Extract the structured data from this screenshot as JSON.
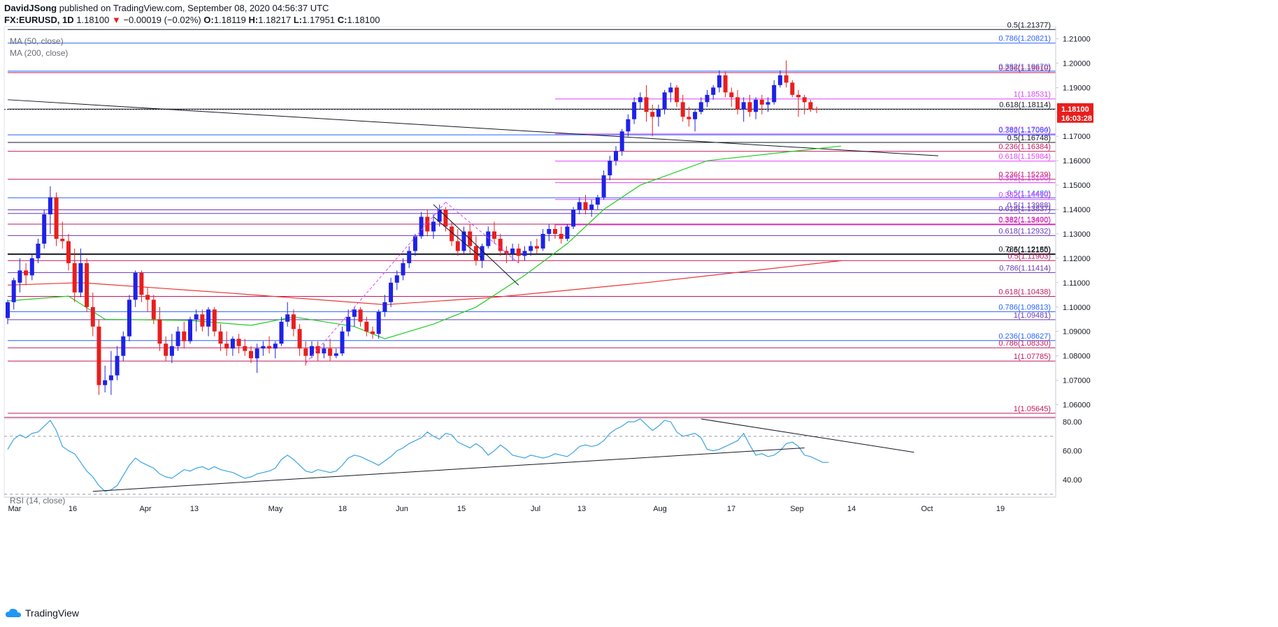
{
  "header": {
    "author": "DavidJSong",
    "published": "published on TradingView.com, September 08, 2020 04:56:37 UTC",
    "symbol": "FX:EURUSD, 1D",
    "last": "1.18100",
    "change": "−0.00019 (−0.02%)",
    "open_label": "O:",
    "open": "1.18119",
    "high_label": "H:",
    "high": "1.18217",
    "low_label": "L:",
    "low": "1.17951",
    "close_label": "C:",
    "close": "1.18100"
  },
  "legend": {
    "ma50": "MA (50, close)",
    "ma200": "MA (200, close)",
    "rsi": "RSI (14, close)"
  },
  "branding": {
    "name": "TradingView"
  },
  "price_badge": {
    "price": "1.18100",
    "countdown": "16:03:28"
  },
  "colors": {
    "up": "#1e22e6",
    "down": "#e91e1e",
    "ma50": "#22cc22",
    "ma200": "#ee3333",
    "rsi": "#3ba3e3",
    "fib_black": "#131722",
    "fib_blue": "#2962ff",
    "fib_red": "#c2185b",
    "fib_magenta": "#e040fb",
    "fib_purple": "#673ab7"
  },
  "chart_data": {
    "type": "candlestick",
    "price_axis": {
      "min": 1.055,
      "max": 1.215,
      "ticks": [
        "1.21000",
        "1.20000",
        "1.19000",
        "1.18000",
        "1.17000",
        "1.16000",
        "1.15000",
        "1.14000",
        "1.13000",
        "1.12000",
        "1.11000",
        "1.10000",
        "1.09000",
        "1.08000",
        "1.07000",
        "1.06000"
      ]
    },
    "rsi_axis": {
      "min": 28,
      "max": 82,
      "ticks": [
        "80.00",
        "60.00",
        "40.00"
      ],
      "overbought": 70,
      "oversold": 30
    },
    "time_axis": [
      "Mar",
      "16",
      "Apr",
      "13",
      "May",
      "18",
      "Jun",
      "15",
      "Jul",
      "13",
      "Aug",
      "17",
      "Sep",
      "14",
      "Oct",
      "19"
    ],
    "candles": [
      [
        1.0955,
        1.103,
        1.093,
        1.102
      ],
      [
        1.102,
        1.112,
        1.099,
        1.111
      ],
      [
        1.11,
        1.12,
        1.106,
        1.115
      ],
      [
        1.115,
        1.118,
        1.109,
        1.113
      ],
      [
        1.113,
        1.122,
        1.111,
        1.12
      ],
      [
        1.12,
        1.128,
        1.118,
        1.126
      ],
      [
        1.126,
        1.14,
        1.124,
        1.138
      ],
      [
        1.138,
        1.1495,
        1.13,
        1.145
      ],
      [
        1.145,
        1.147,
        1.125,
        1.128
      ],
      [
        1.128,
        1.135,
        1.124,
        1.127
      ],
      [
        1.127,
        1.13,
        1.115,
        1.118
      ],
      [
        1.118,
        1.124,
        1.102,
        1.106
      ],
      [
        1.106,
        1.124,
        1.104,
        1.118
      ],
      [
        1.118,
        1.12,
        1.098,
        1.1
      ],
      [
        1.1,
        1.106,
        1.088,
        1.092
      ],
      [
        1.092,
        1.095,
        1.064,
        1.068
      ],
      [
        1.068,
        1.076,
        1.065,
        1.07
      ],
      [
        1.07,
        1.082,
        1.064,
        1.072
      ],
      [
        1.072,
        1.084,
        1.07,
        1.08
      ],
      [
        1.08,
        1.09,
        1.078,
        1.088
      ],
      [
        1.088,
        1.105,
        1.086,
        1.103
      ],
      [
        1.103,
        1.115,
        1.1,
        1.114
      ],
      [
        1.114,
        1.115,
        1.102,
        1.105
      ],
      [
        1.105,
        1.108,
        1.098,
        1.103
      ],
      [
        1.103,
        1.105,
        1.093,
        1.095
      ],
      [
        1.095,
        1.1,
        1.082,
        1.085
      ],
      [
        1.085,
        1.088,
        1.078,
        1.08
      ],
      [
        1.08,
        1.089,
        1.077,
        1.084
      ],
      [
        1.084,
        1.092,
        1.082,
        1.09
      ],
      [
        1.09,
        1.094,
        1.083,
        1.086
      ],
      [
        1.086,
        1.096,
        1.085,
        1.095
      ],
      [
        1.095,
        1.099,
        1.09,
        1.097
      ],
      [
        1.097,
        1.099,
        1.09,
        1.092
      ],
      [
        1.092,
        1.1,
        1.088,
        1.099
      ],
      [
        1.099,
        1.1,
        1.088,
        1.09
      ],
      [
        1.09,
        1.093,
        1.082,
        1.085
      ],
      [
        1.085,
        1.09,
        1.08,
        1.083
      ],
      [
        1.083,
        1.088,
        1.08,
        1.087
      ],
      [
        1.087,
        1.089,
        1.081,
        1.084
      ],
      [
        1.084,
        1.087,
        1.08,
        1.082
      ],
      [
        1.082,
        1.084,
        1.077,
        1.079
      ],
      [
        1.079,
        1.085,
        1.073,
        1.083
      ],
      [
        1.083,
        1.086,
        1.08,
        1.084
      ],
      [
        1.084,
        1.088,
        1.081,
        1.083
      ],
      [
        1.083,
        1.086,
        1.079,
        1.085
      ],
      [
        1.085,
        1.096,
        1.084,
        1.094
      ],
      [
        1.094,
        1.102,
        1.092,
        1.097
      ],
      [
        1.097,
        1.099,
        1.088,
        1.091
      ],
      [
        1.091,
        1.093,
        1.08,
        1.083
      ],
      [
        1.083,
        1.086,
        1.076,
        1.08
      ],
      [
        1.08,
        1.086,
        1.079,
        1.084
      ],
      [
        1.084,
        1.086,
        1.078,
        1.081
      ],
      [
        1.081,
        1.085,
        1.079,
        1.083
      ],
      [
        1.083,
        1.087,
        1.078,
        1.08
      ],
      [
        1.08,
        1.083,
        1.079,
        1.081
      ],
      [
        1.081,
        1.092,
        1.08,
        1.09
      ],
      [
        1.09,
        1.099,
        1.088,
        1.096
      ],
      [
        1.096,
        1.1,
        1.092,
        1.099
      ],
      [
        1.099,
        1.1,
        1.092,
        1.094
      ],
      [
        1.094,
        1.096,
        1.088,
        1.09
      ],
      [
        1.09,
        1.092,
        1.087,
        1.089
      ],
      [
        1.089,
        1.099,
        1.087,
        1.098
      ],
      [
        1.098,
        1.105,
        1.096,
        1.102
      ],
      [
        1.102,
        1.112,
        1.1,
        1.11
      ],
      [
        1.11,
        1.115,
        1.107,
        1.113
      ],
      [
        1.113,
        1.12,
        1.111,
        1.118
      ],
      [
        1.118,
        1.125,
        1.116,
        1.123
      ],
      [
        1.123,
        1.13,
        1.121,
        1.129
      ],
      [
        1.129,
        1.139,
        1.128,
        1.137
      ],
      [
        1.137,
        1.14,
        1.129,
        1.131
      ],
      [
        1.131,
        1.138,
        1.128,
        1.135
      ],
      [
        1.135,
        1.142,
        1.133,
        1.14
      ],
      [
        1.14,
        1.141,
        1.131,
        1.133
      ],
      [
        1.133,
        1.135,
        1.125,
        1.127
      ],
      [
        1.127,
        1.132,
        1.121,
        1.123
      ],
      [
        1.123,
        1.133,
        1.122,
        1.131
      ],
      [
        1.131,
        1.134,
        1.122,
        1.125
      ],
      [
        1.125,
        1.129,
        1.117,
        1.119
      ],
      [
        1.119,
        1.126,
        1.116,
        1.125
      ],
      [
        1.125,
        1.133,
        1.124,
        1.131
      ],
      [
        1.131,
        1.135,
        1.126,
        1.128
      ],
      [
        1.128,
        1.13,
        1.121,
        1.123
      ],
      [
        1.123,
        1.125,
        1.118,
        1.122
      ],
      [
        1.122,
        1.126,
        1.119,
        1.124
      ],
      [
        1.124,
        1.126,
        1.118,
        1.121
      ],
      [
        1.121,
        1.125,
        1.119,
        1.123
      ],
      [
        1.123,
        1.127,
        1.121,
        1.125
      ],
      [
        1.125,
        1.128,
        1.122,
        1.124
      ],
      [
        1.124,
        1.132,
        1.123,
        1.13
      ],
      [
        1.13,
        1.134,
        1.127,
        1.132
      ],
      [
        1.132,
        1.134,
        1.128,
        1.13
      ],
      [
        1.13,
        1.133,
        1.126,
        1.128
      ],
      [
        1.128,
        1.134,
        1.127,
        1.133
      ],
      [
        1.133,
        1.141,
        1.132,
        1.14
      ],
      [
        1.14,
        1.145,
        1.138,
        1.143
      ],
      [
        1.143,
        1.146,
        1.138,
        1.14
      ],
      [
        1.14,
        1.144,
        1.137,
        1.142
      ],
      [
        1.142,
        1.146,
        1.14,
        1.145
      ],
      [
        1.145,
        1.156,
        1.144,
        1.154
      ],
      [
        1.154,
        1.162,
        1.152,
        1.16
      ],
      [
        1.16,
        1.166,
        1.158,
        1.164
      ],
      [
        1.164,
        1.173,
        1.162,
        1.172
      ],
      [
        1.172,
        1.179,
        1.17,
        1.177
      ],
      [
        1.177,
        1.186,
        1.175,
        1.184
      ],
      [
        1.184,
        1.188,
        1.181,
        1.186
      ],
      [
        1.186,
        1.191,
        1.176,
        1.18
      ],
      [
        1.18,
        1.183,
        1.17,
        1.178
      ],
      [
        1.178,
        1.183,
        1.174,
        1.181
      ],
      [
        1.181,
        1.189,
        1.179,
        1.188
      ],
      [
        1.188,
        1.192,
        1.184,
        1.19
      ],
      [
        1.19,
        1.191,
        1.182,
        1.184
      ],
      [
        1.184,
        1.187,
        1.176,
        1.178
      ],
      [
        1.178,
        1.182,
        1.174,
        1.177
      ],
      [
        1.177,
        1.181,
        1.172,
        1.18
      ],
      [
        1.18,
        1.186,
        1.179,
        1.184
      ],
      [
        1.184,
        1.189,
        1.182,
        1.187
      ],
      [
        1.187,
        1.191,
        1.185,
        1.19
      ],
      [
        1.19,
        1.197,
        1.188,
        1.195
      ],
      [
        1.195,
        1.1965,
        1.186,
        1.188
      ],
      [
        1.188,
        1.19,
        1.182,
        1.186
      ],
      [
        1.186,
        1.189,
        1.179,
        1.181
      ],
      [
        1.181,
        1.186,
        1.176,
        1.184
      ],
      [
        1.184,
        1.187,
        1.178,
        1.18
      ],
      [
        1.18,
        1.186,
        1.177,
        1.185
      ],
      [
        1.185,
        1.187,
        1.179,
        1.183
      ],
      [
        1.183,
        1.186,
        1.18,
        1.184
      ],
      [
        1.184,
        1.193,
        1.183,
        1.191
      ],
      [
        1.191,
        1.197,
        1.19,
        1.195
      ],
      [
        1.195,
        1.2011,
        1.19,
        1.192
      ],
      [
        1.192,
        1.193,
        1.186,
        1.187
      ],
      [
        1.187,
        1.189,
        1.178,
        1.186
      ],
      [
        1.186,
        1.187,
        1.179,
        1.184
      ],
      [
        1.184,
        1.185,
        1.18,
        1.181
      ],
      [
        1.1812,
        1.1822,
        1.1795,
        1.181
      ]
    ],
    "ma50": [
      [
        1.1025,
        0
      ],
      [
        1.1045,
        10
      ],
      [
        1.095,
        16
      ],
      [
        1.0945,
        30
      ],
      [
        1.0925,
        40
      ],
      [
        1.096,
        47
      ],
      [
        1.092,
        57
      ],
      [
        1.087,
        62
      ],
      [
        1.093,
        70
      ],
      [
        1.1,
        77
      ],
      [
        1.113,
        85
      ],
      [
        1.126,
        92
      ],
      [
        1.14,
        98
      ],
      [
        1.15,
        104
      ],
      [
        1.16,
        115
      ],
      [
        1.166,
        137
      ]
    ],
    "ma200": [
      [
        1.109,
        0
      ],
      [
        1.11,
        12
      ],
      [
        1.106,
        35
      ],
      [
        1.101,
        62
      ],
      [
        1.104,
        80
      ],
      [
        1.11,
        105
      ],
      [
        1.119,
        137
      ]
    ],
    "trendline": [
      [
        1.185,
        0
      ],
      [
        1.162,
        153
      ]
    ],
    "rsi": [
      61,
      68,
      71,
      69,
      72,
      73,
      77,
      81,
      74,
      63,
      60,
      58,
      52,
      46,
      42,
      36,
      32,
      33,
      36,
      43,
      50,
      55,
      52,
      50,
      48,
      44,
      42,
      41,
      44,
      47,
      46,
      48,
      49,
      47,
      49,
      47,
      46,
      45,
      43,
      41,
      42,
      44,
      45,
      46,
      48,
      54,
      57,
      54,
      50,
      46,
      45,
      47,
      46,
      45,
      46,
      50,
      55,
      57,
      56,
      54,
      52,
      50,
      53,
      56,
      60,
      62,
      65,
      67,
      69,
      73,
      70,
      68,
      72,
      71,
      66,
      64,
      62,
      65,
      62,
      57,
      60,
      64,
      61,
      57,
      56,
      55,
      57,
      56,
      55,
      56,
      58,
      57,
      56,
      59,
      63,
      64,
      63,
      64,
      67,
      72,
      75,
      77,
      80,
      80,
      82,
      78,
      74,
      77,
      81,
      80,
      73,
      70,
      71,
      72,
      69,
      61,
      60,
      61,
      63,
      65,
      67,
      72,
      64,
      57,
      58,
      56,
      57,
      60,
      65,
      66,
      63,
      57,
      56,
      54,
      52,
      52
    ],
    "rsi_lines": [
      [
        [
          32,
          14
        ],
        [
          62,
          131
        ]
      ],
      [
        [
          82,
          114
        ],
        [
          59,
          149
        ]
      ]
    ],
    "fib_levels": [
      {
        "value": 1.21377,
        "label": "0.5(1.21377)",
        "color": "#131722",
        "x0": 0
      },
      {
        "value": 1.20821,
        "label": "0.786(1.20821)",
        "color": "#2962ff",
        "x0": 0
      },
      {
        "value": 1.1967,
        "label": "0.382(1.19670)",
        "color": "#2962ff",
        "x0": 0
      },
      {
        "value": 1.1961,
        "label": "0.236(1.19610)",
        "color": "#c2185b",
        "x0": 0
      },
      {
        "value": 1.18531,
        "label": "1(1.18531)",
        "color": "#e040fb",
        "x0": 90
      },
      {
        "value": 1.18114,
        "label": "0.618(1.18114)",
        "color": "#131722",
        "x0": 0
      },
      {
        "value": 1.17094,
        "label": "0.786(1.17094)",
        "color": "#e040fb",
        "x0": 90
      },
      {
        "value": 1.1706,
        "label": "0.382(1.17060)",
        "color": "#2962ff",
        "x0": 0
      },
      {
        "value": 1.16748,
        "label": "0.5(1.16748)",
        "color": "#131722",
        "x0": 0
      },
      {
        "value": 1.16384,
        "label": "0.236(1.16384)",
        "color": "#c2185b",
        "x0": 0
      },
      {
        "value": 1.15984,
        "label": "0.618(1.15984)",
        "color": "#e040fb",
        "x0": 90
      },
      {
        "value": 1.15239,
        "label": "0.236(1.15239)",
        "color": "#c2185b",
        "x0": 0
      },
      {
        "value": 1.151,
        "label": "0.382(1.15100)",
        "color": "#e040fb",
        "x0": 90
      },
      {
        "value": 1.1448,
        "label": "0.5(1.14480)",
        "color": "#2962ff",
        "x0": 0
      },
      {
        "value": 1.1441,
        "label": "0.382(1.14410)",
        "color": "#e040fb",
        "x0": 90
      },
      {
        "value": 1.13988,
        "label": "0.5(1.13988)",
        "color": "#673ab7",
        "x0": 0
      },
      {
        "value": 1.13837,
        "label": "0.618(1.13837)",
        "color": "#673ab7",
        "x0": 0
      },
      {
        "value": 1.134,
        "label": "0.382(1.13400)",
        "color": "#c2185b",
        "x0": 0
      },
      {
        "value": 1.1337,
        "label": "0.382(1.13370)",
        "color": "#e040fb",
        "x0": 90
      },
      {
        "value": 1.12932,
        "label": "0.618(1.12932)",
        "color": "#673ab7",
        "x0": 0
      },
      {
        "value": 1.12185,
        "label": "0.786(1.12185)",
        "color": "#131722",
        "x0": 0
      },
      {
        "value": 1.1215,
        "label": "0.5(1.12150)",
        "color": "#131722",
        "x0": 0
      },
      {
        "value": 1.11903,
        "label": "0.5(1.11903)",
        "color": "#c2185b",
        "x0": 0
      },
      {
        "value": 1.11414,
        "label": "0.786(1.11414)",
        "color": "#673ab7",
        "x0": 0
      },
      {
        "value": 1.10438,
        "label": "0.618(1.10438)",
        "color": "#c2185b",
        "x0": 0
      },
      {
        "value": 1.09813,
        "label": "0.786(1.09813)",
        "color": "#2962ff",
        "x0": 0
      },
      {
        "value": 1.09481,
        "label": "1(1.09481)",
        "color": "#673ab7",
        "x0": 0
      },
      {
        "value": 1.08627,
        "label": "0.236(1.08627)",
        "color": "#2962ff",
        "x0": 0
      },
      {
        "value": 1.0833,
        "label": "0.786(1.08330)",
        "color": "#c2185b",
        "x0": 0
      },
      {
        "value": 1.07785,
        "label": "1(1.07785)",
        "color": "#c2185b",
        "x0": 0
      },
      {
        "value": 1.05645,
        "label": "1(1.05645)",
        "color": "#c2185b",
        "x0": 0
      }
    ]
  }
}
